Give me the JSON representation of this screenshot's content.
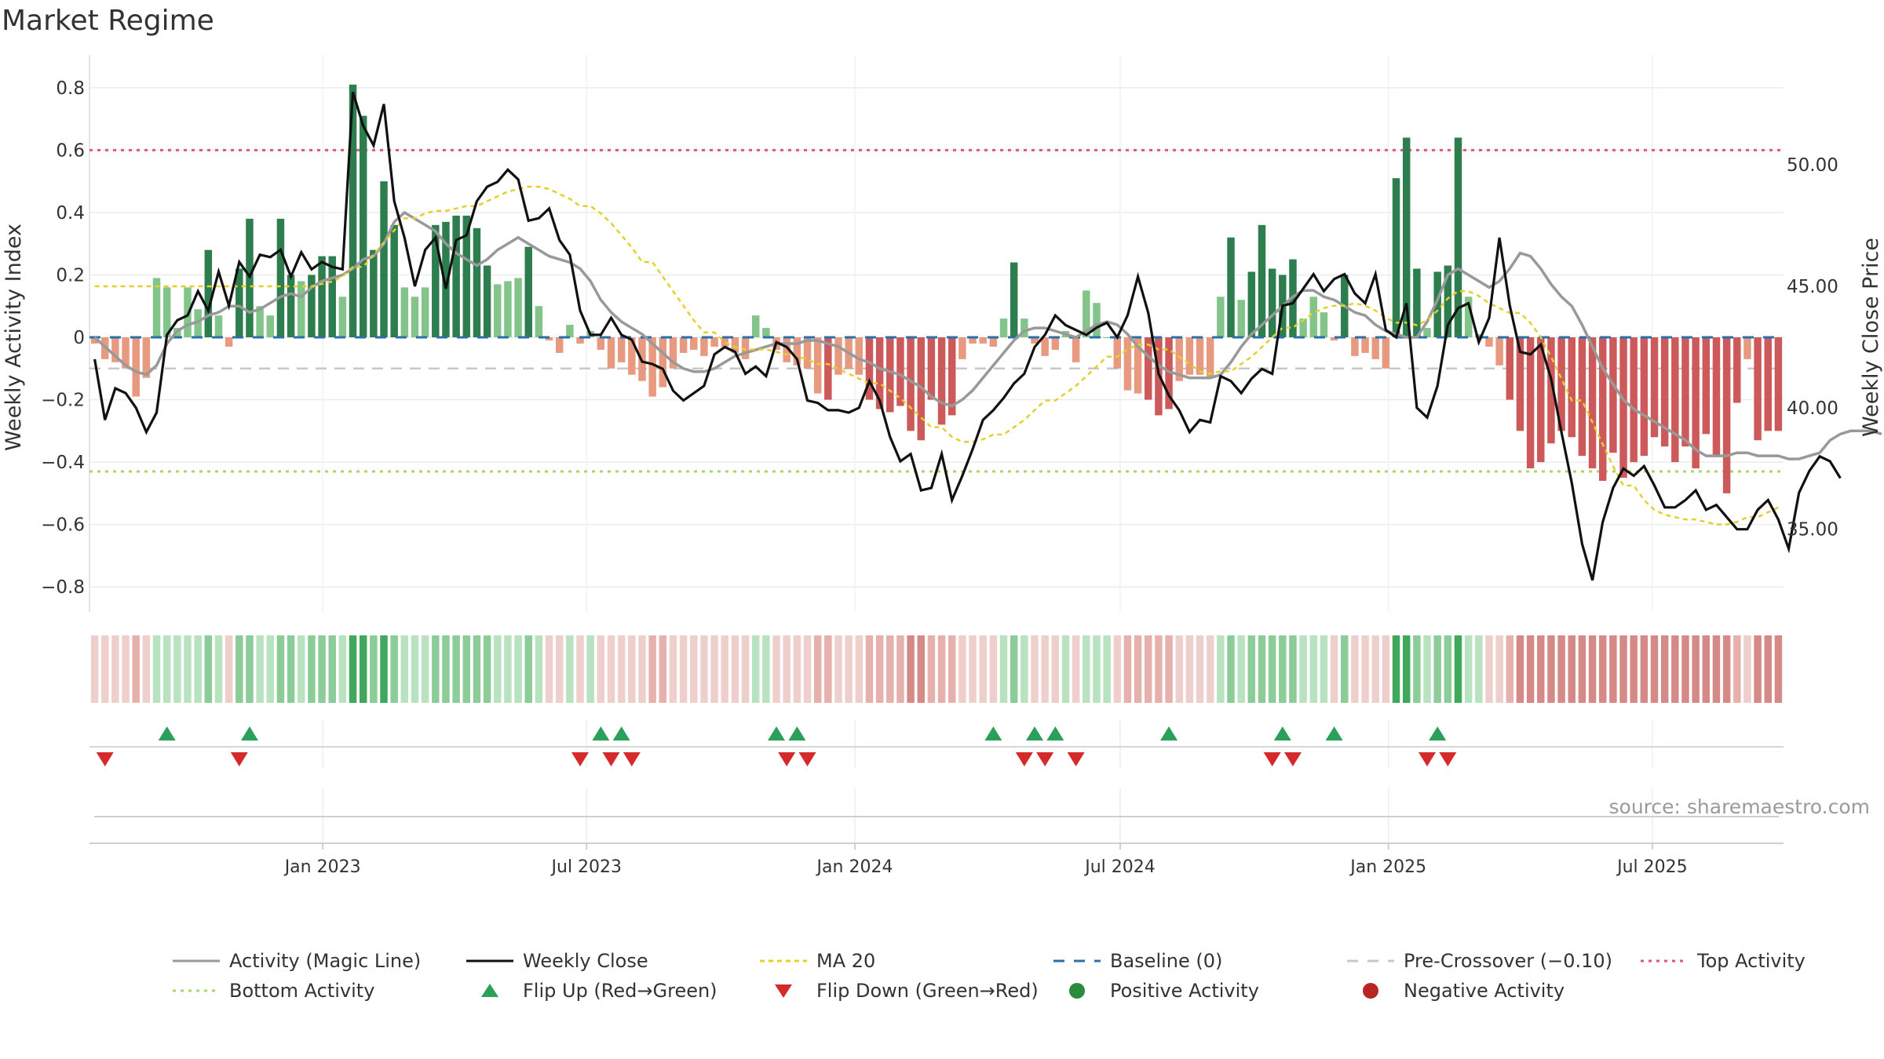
{
  "chart_data": {
    "title": "Market Regime",
    "type": "bar",
    "source": "source: sharemaestro.com",
    "y_left": {
      "label": "Weekly Activity Index",
      "ticks": [
        0.8,
        0.6,
        0.4,
        0.2,
        0,
        -0.2,
        -0.4,
        -0.6,
        -0.8
      ],
      "tick_labels": [
        "0.8",
        "0.6",
        "0.4",
        "0.2",
        "0",
        "−0.2",
        "−0.4",
        "−0.6",
        "−0.8"
      ],
      "range": [
        -0.88,
        0.88
      ]
    },
    "y_right": {
      "label": "Weekly Close Price",
      "ticks": [
        50,
        45,
        40,
        35
      ],
      "tick_labels": [
        "50.00",
        "45.00",
        "40.00",
        "35.00"
      ],
      "range": [
        31.6,
        54.2
      ]
    },
    "x_axis": {
      "ticks": [
        "2023-01-01",
        "2023-07-01",
        "2024-01-01",
        "2024-07-01",
        "2025-01-01",
        "2025-07-01"
      ],
      "tick_labels": [
        "Jan 2023",
        "Jul 2023",
        "Jan 2024",
        "Jul 2024",
        "Jan 2025",
        "Jul 2025"
      ],
      "start": "2022-07-25",
      "end": "2025-09-29"
    },
    "levels": {
      "top_activity": 0.6,
      "bottom_activity": -0.43,
      "pre_crossover": -0.1,
      "baseline": 0
    },
    "colors": {
      "pos_strong": "#2e7d4f",
      "pos_light": "#82c48a",
      "neg_strong": "#cc5a5a",
      "neg_light": "#e89a80",
      "magic_line": "#999999",
      "close": "#111111",
      "ma20": "#e6cf2a",
      "baseline": "#2a6fa8",
      "pre_crossover": "#c8c8c8",
      "top": "#e05a6e",
      "bottom": "#a8d86a",
      "flip_up": "#2aa05a",
      "flip_down": "#d42a2a"
    },
    "series": [
      {
        "name": "Activity (Magic Line)",
        "values": [
          0,
          -0.03,
          -0.06,
          -0.09,
          -0.11,
          -0.12,
          -0.09,
          -0.02,
          0.02,
          0.04,
          0.05,
          0.07,
          0.08,
          0.1,
          0.1,
          0.08,
          0.09,
          0.11,
          0.13,
          0.14,
          0.13,
          0.16,
          0.18,
          0.19,
          0.2,
          0.22,
          0.25,
          0.26,
          0.3,
          0.37,
          0.4,
          0.38,
          0.36,
          0.34,
          0.3,
          0.27,
          0.25,
          0.23,
          0.25,
          0.28,
          0.3,
          0.32,
          0.3,
          0.28,
          0.26,
          0.25,
          0.24,
          0.22,
          0.18,
          0.12,
          0.08,
          0.05,
          0.03,
          0.01,
          -0.02,
          -0.05,
          -0.08,
          -0.1,
          -0.11,
          -0.11,
          -0.1,
          -0.08,
          -0.06,
          -0.05,
          -0.04,
          -0.03,
          -0.02,
          -0.02,
          -0.02,
          -0.01,
          -0.01,
          -0.02,
          -0.03,
          -0.05,
          -0.07,
          -0.08,
          -0.1,
          -0.11,
          -0.12,
          -0.14,
          -0.16,
          -0.19,
          -0.21,
          -0.22,
          -0.2,
          -0.17,
          -0.13,
          -0.09,
          -0.05,
          -0.01,
          0.02,
          0.03,
          0.03,
          0.02,
          0.01,
          0.0,
          0.02,
          0.04,
          0.05,
          0.04,
          0.01,
          -0.03,
          -0.06,
          -0.09,
          -0.11,
          -0.12,
          -0.13,
          -0.13,
          -0.13,
          -0.12,
          -0.08,
          -0.03,
          0.01,
          0.04,
          0.07,
          0.1,
          0.13,
          0.15,
          0.15,
          0.13,
          0.12,
          0.1,
          0.08,
          0.07,
          0.04,
          0.02,
          0.01,
          0.0,
          0.0,
          0.05,
          0.12,
          0.2,
          0.22,
          0.2,
          0.18,
          0.16,
          0.18,
          0.22,
          0.27,
          0.26,
          0.22,
          0.17,
          0.13,
          0.1,
          0.04,
          -0.03,
          -0.1,
          -0.15,
          -0.2,
          -0.23,
          -0.25,
          -0.27,
          -0.29,
          -0.31,
          -0.33,
          -0.36,
          -0.38,
          -0.38,
          -0.38,
          -0.37,
          -0.37,
          -0.38,
          -0.38,
          -0.38,
          -0.39,
          -0.39,
          -0.38,
          -0.37,
          -0.33,
          -0.31,
          -0.3,
          -0.3,
          -0.3,
          -0.31
        ]
      },
      {
        "name": "Weekly Close",
        "axis": "right",
        "values": [
          42.0,
          39.5,
          40.8,
          40.6,
          40.0,
          39.0,
          39.8,
          43.0,
          43.6,
          43.8,
          44.8,
          44.0,
          45.6,
          44.2,
          46.0,
          45.4,
          46.3,
          46.2,
          46.5,
          45.4,
          46.4,
          45.7,
          46.0,
          45.8,
          45.7,
          53.0,
          51.6,
          50.8,
          52.5,
          48.5,
          47.0,
          45.0,
          46.5,
          47.0,
          44.9,
          46.9,
          47.1,
          48.5,
          49.1,
          49.3,
          49.8,
          49.4,
          47.7,
          47.8,
          48.2,
          46.9,
          46.3,
          44.0,
          43.0,
          43.0,
          43.7,
          43.0,
          42.8,
          41.9,
          41.8,
          41.6,
          40.7,
          40.3,
          40.6,
          40.9,
          42.2,
          42.5,
          42.3,
          41.4,
          41.7,
          41.3,
          42.7,
          42.5,
          42.0,
          40.3,
          40.2,
          39.9,
          39.9,
          39.8,
          40.0,
          41.1,
          40.3,
          38.8,
          37.8,
          38.1,
          36.6,
          36.7,
          38.1,
          36.2,
          37.2,
          38.3,
          39.5,
          39.9,
          40.4,
          41.0,
          41.4,
          42.5,
          43.0,
          43.8,
          43.4,
          43.2,
          43.0,
          43.3,
          43.5,
          42.9,
          43.8,
          45.4,
          43.9,
          41.4,
          40.5,
          39.9,
          39.0,
          39.5,
          39.4,
          41.3,
          41.1,
          40.6,
          41.2,
          41.6,
          41.4,
          44.2,
          44.3,
          44.9,
          45.5,
          44.8,
          45.3,
          45.5,
          44.7,
          44.3,
          45.5,
          43.2,
          42.9,
          44.3,
          40.0,
          39.6,
          40.9,
          43.4,
          44.1,
          44.3,
          42.7,
          43.7,
          47.0,
          44.2,
          42.3,
          42.2,
          42.6,
          41.2,
          39.0,
          36.9,
          34.4,
          32.9,
          35.3,
          36.7,
          37.5,
          37.2,
          37.6,
          36.8,
          35.9,
          35.9,
          36.2,
          36.6,
          35.8,
          36.0,
          35.5,
          35.0,
          35.0,
          35.8,
          36.2,
          35.4,
          34.2,
          36.5,
          37.4,
          38.0,
          37.8,
          37.1
        ],
        "note": ""
      },
      {
        "name": "MA 20",
        "axis": "right",
        "values": [
          45.0,
          45.0,
          45.0,
          45.0,
          45.0,
          45.0,
          45.0,
          45.0,
          45.0,
          45.0,
          45.0,
          45.0,
          45.0,
          45.0,
          45.0,
          45.0,
          45.0,
          45.0,
          45.1,
          45.2,
          45.4,
          45.8,
          46.3,
          46.8,
          47.3,
          47.8,
          48.0,
          48.1,
          48.1,
          48.2,
          48.3,
          48.5,
          48.7,
          48.9,
          49.0,
          49.1,
          49.0,
          48.8,
          48.6,
          48.3,
          48.0,
          47.6,
          47.1,
          46.6,
          46.0,
          45.4,
          44.8,
          44.2,
          43.6,
          43.1,
          42.7,
          42.5,
          42.4,
          42.4,
          42.3,
          42.2,
          42.1,
          42.0,
          41.8,
          41.6,
          41.4,
          41.2,
          41.0,
          40.7,
          40.4,
          40.0,
          39.6,
          39.2,
          38.8,
          38.6,
          38.6,
          38.7,
          38.9,
          39.2,
          39.5,
          39.9,
          40.3,
          40.6,
          40.9,
          41.3,
          41.7,
          42.1,
          42.4,
          42.6,
          42.6,
          42.4,
          42.1,
          41.8,
          41.5,
          41.4,
          41.5,
          41.8,
          42.1,
          42.5,
          42.9,
          43.3,
          43.6,
          43.9,
          44.1,
          44.2,
          44.3,
          44.2,
          44.0,
          43.7,
          43.5,
          43.4,
          43.6,
          44.0,
          44.5,
          44.8,
          44.6,
          44.3,
          44.1,
          43.9,
          43.5,
          42.9,
          42.1,
          41.2,
          40.3,
          39.4,
          38.5,
          37.6,
          36.8,
          36.2,
          35.8,
          35.6,
          35.5,
          35.4,
          35.3,
          35.2,
          35.2,
          35.3,
          35.5,
          35.7,
          35.9
        ],
        "note": ""
      }
    ],
    "activity_bars": [
      -0.02,
      -0.07,
      -0.08,
      -0.1,
      -0.19,
      -0.13,
      0.19,
      0.16,
      0.03,
      0.16,
      0.09,
      0.28,
      0.07,
      -0.03,
      0.22,
      0.38,
      0.1,
      0.07,
      0.38,
      0.2,
      0.18,
      0.2,
      0.26,
      0.26,
      0.13,
      0.81,
      0.71,
      0.28,
      0.5,
      0.36,
      0.16,
      0.13,
      0.16,
      0.36,
      0.37,
      0.39,
      0.39,
      0.35,
      0.23,
      0.17,
      0.18,
      0.19,
      0.29,
      0.1,
      -0.01,
      -0.05,
      0.04,
      -0.02,
      0.02,
      -0.04,
      -0.1,
      -0.08,
      -0.12,
      -0.14,
      -0.19,
      -0.16,
      -0.1,
      -0.05,
      -0.04,
      -0.06,
      -0.03,
      -0.03,
      -0.05,
      -0.07,
      0.07,
      0.03,
      -0.04,
      -0.08,
      -0.09,
      -0.1,
      -0.18,
      -0.2,
      -0.12,
      -0.1,
      -0.12,
      -0.2,
      -0.23,
      -0.24,
      -0.22,
      -0.3,
      -0.33,
      -0.2,
      -0.28,
      -0.25,
      -0.07,
      -0.02,
      -0.02,
      -0.03,
      0.06,
      0.24,
      0.06,
      -0.02,
      -0.06,
      -0.04,
      0.02,
      -0.08,
      0.15,
      0.11,
      0.0,
      -0.1,
      -0.17,
      -0.18,
      -0.2,
      -0.25,
      -0.23,
      -0.14,
      -0.12,
      -0.12,
      -0.13,
      0.13,
      0.32,
      0.12,
      0.21,
      0.36,
      0.22,
      0.2,
      0.25,
      0.06,
      0.13,
      0.08,
      -0.01,
      0.2,
      -0.06,
      -0.05,
      -0.07,
      -0.1,
      0.51,
      0.64,
      0.22,
      0.03,
      0.21,
      0.23,
      0.64,
      0.13,
      0.01,
      -0.03,
      -0.09,
      -0.2,
      -0.3,
      -0.42,
      -0.4,
      -0.34,
      -0.3,
      -0.32,
      -0.38,
      -0.42,
      -0.46,
      -0.37,
      -0.45,
      -0.4,
      -0.38,
      -0.32,
      -0.35,
      -0.4,
      -0.35,
      -0.42,
      -0.31,
      -0.38,
      -0.5,
      -0.21,
      -0.07,
      -0.33,
      -0.3,
      -0.3
    ],
    "flip_up_weeks": [
      7,
      15,
      49,
      51,
      66,
      68,
      87,
      91,
      93,
      104,
      115,
      120,
      130
    ],
    "flip_down_weeks": [
      1,
      14,
      47,
      50,
      52,
      67,
      69,
      90,
      92,
      95,
      114,
      116,
      129,
      131
    ],
    "legend": [
      "Activity (Magic Line)",
      "Weekly Close",
      "MA 20",
      "Baseline (0)",
      "Pre-Crossover (−0.10)",
      "Top Activity",
      "Bottom Activity",
      "Flip Up (Red→Green)",
      "Flip Down (Green→Red)",
      "Positive Activity",
      "Negative Activity"
    ],
    "legend_placement": "bottom",
    "grid": true
  }
}
